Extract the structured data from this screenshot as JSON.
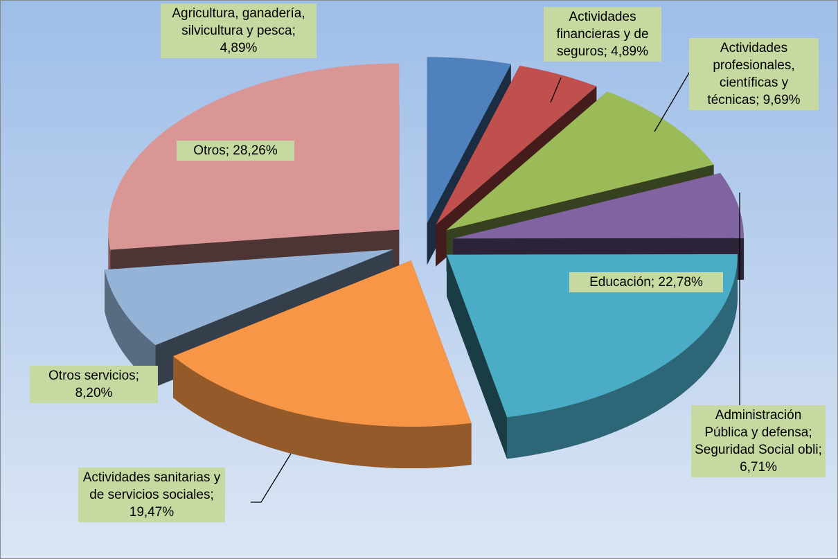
{
  "chart_data": {
    "type": "pie3d",
    "values": [
      4.89,
      4.89,
      9.69,
      6.71,
      22.78,
      19.47,
      8.2,
      28.26
    ],
    "value_labels": [
      "Agricultura, ganadería, silvicultura y pesca; 4,89%",
      "Actividades financieras y de seguros; 4,89%",
      "Actividades profesionales, científicas y técnicas; 9,69%",
      "Administración Pública y defensa; Seguridad Social obli; 6,71%",
      "Educación; 22,78%",
      "Actividades sanitarias y de servicios sociales; 19,47%",
      "Otros servicios; 8,20%",
      "Otros; 28,26%"
    ],
    "colors": [
      "#4f81bd",
      "#c0504d",
      "#9bbb59",
      "#8064a2",
      "#4bacc6",
      "#f79646",
      "#95b3d7",
      "#d99694"
    ]
  }
}
